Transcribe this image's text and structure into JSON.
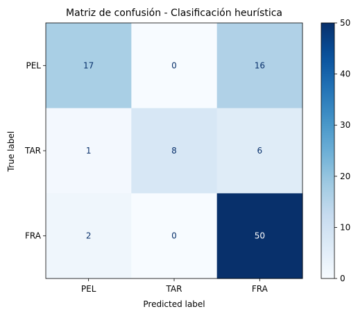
{
  "chart_data": {
    "type": "heatmap",
    "title": "Matriz de confusión - Clasificación heurística",
    "xlabel": "Predicted label",
    "ylabel": "True label",
    "x_categories": [
      "PEL",
      "TAR",
      "FRA"
    ],
    "y_categories": [
      "PEL",
      "TAR",
      "FRA"
    ],
    "values": [
      [
        17,
        0,
        16
      ],
      [
        1,
        8,
        6
      ],
      [
        2,
        0,
        50
      ]
    ],
    "colormap": "Blues",
    "colorbar": {
      "range": [
        0,
        50
      ],
      "ticks": [
        0,
        10,
        20,
        30,
        40,
        50
      ]
    }
  }
}
